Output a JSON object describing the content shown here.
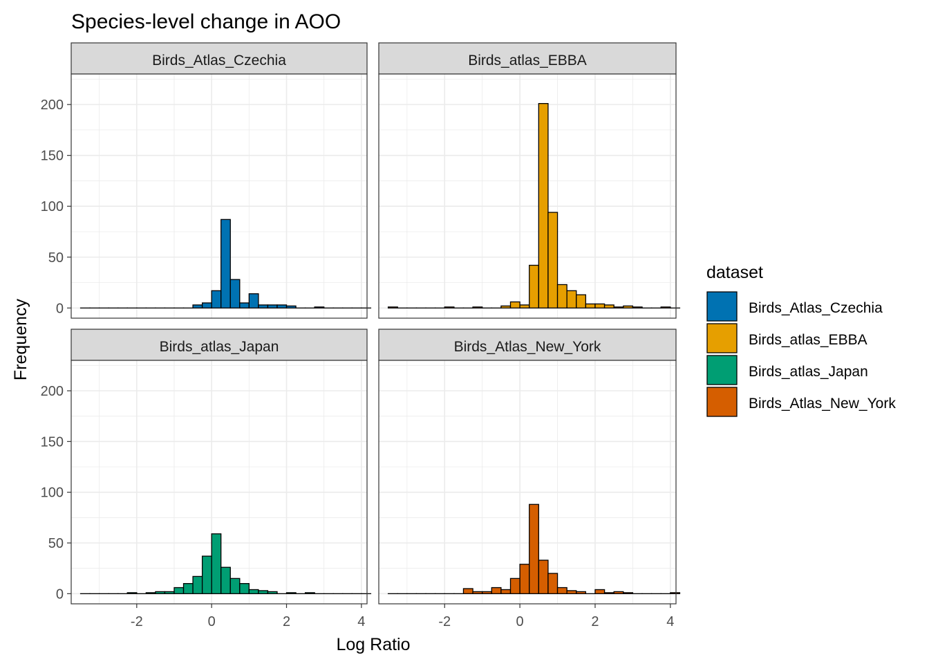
{
  "chart_data": {
    "type": "bar",
    "title": "Species-level change in AOO",
    "xlabel": "Log Ratio",
    "ylabel": "Frequency",
    "xlim": [
      -3.75,
      4.15
    ],
    "ylim": [
      -10,
      230
    ],
    "x_ticks": [
      "-2",
      "0",
      "2",
      "4"
    ],
    "x_tick_values": [
      -2,
      0,
      2,
      4
    ],
    "y_ticks": [
      "0",
      "50",
      "100",
      "150",
      "200"
    ],
    "y_tick_values": [
      0,
      50,
      100,
      150,
      200
    ],
    "bin_start": -3.5,
    "bin_width": 0.25,
    "grid": true,
    "legend": {
      "title": "dataset",
      "position": "right",
      "entries": [
        "Birds_Atlas_Czechia",
        "Birds_atlas_EBBA",
        "Birds_atlas_Japan",
        "Birds_Atlas_New_York"
      ]
    },
    "facets": [
      {
        "name": "Birds_Atlas_Czechia",
        "color": "#0072B2",
        "counts": [
          0,
          0,
          0,
          0,
          0,
          0,
          0,
          0,
          0,
          0,
          0,
          0,
          3,
          5,
          17,
          87,
          28,
          5,
          14,
          3,
          3,
          3,
          2,
          0,
          0,
          1,
          0,
          0,
          0,
          0,
          0
        ]
      },
      {
        "name": "Birds_atlas_EBBA",
        "color": "#E69F00",
        "counts": [
          1,
          0,
          0,
          0,
          0,
          0,
          1,
          0,
          0,
          1,
          0,
          0,
          2,
          6,
          3,
          42,
          201,
          94,
          23,
          17,
          13,
          4,
          4,
          3,
          1,
          2,
          1,
          0,
          0,
          1,
          0
        ]
      },
      {
        "name": "Birds_atlas_Japan",
        "color": "#009E73",
        "counts": [
          0,
          0,
          0,
          0,
          0,
          1,
          0,
          1,
          2,
          2,
          6,
          10,
          17,
          37,
          59,
          26,
          15,
          10,
          4,
          3,
          2,
          0,
          1,
          0,
          1,
          0,
          0,
          0,
          0,
          0,
          0
        ]
      },
      {
        "name": "Birds_Atlas_New_York",
        "color": "#D55E00",
        "counts": [
          0,
          0,
          0,
          0,
          0,
          0,
          0,
          0,
          5,
          2,
          2,
          6,
          4,
          15,
          29,
          88,
          33,
          20,
          6,
          3,
          2,
          0,
          4,
          1,
          2,
          1,
          0,
          0,
          0,
          0,
          1
        ]
      }
    ]
  }
}
